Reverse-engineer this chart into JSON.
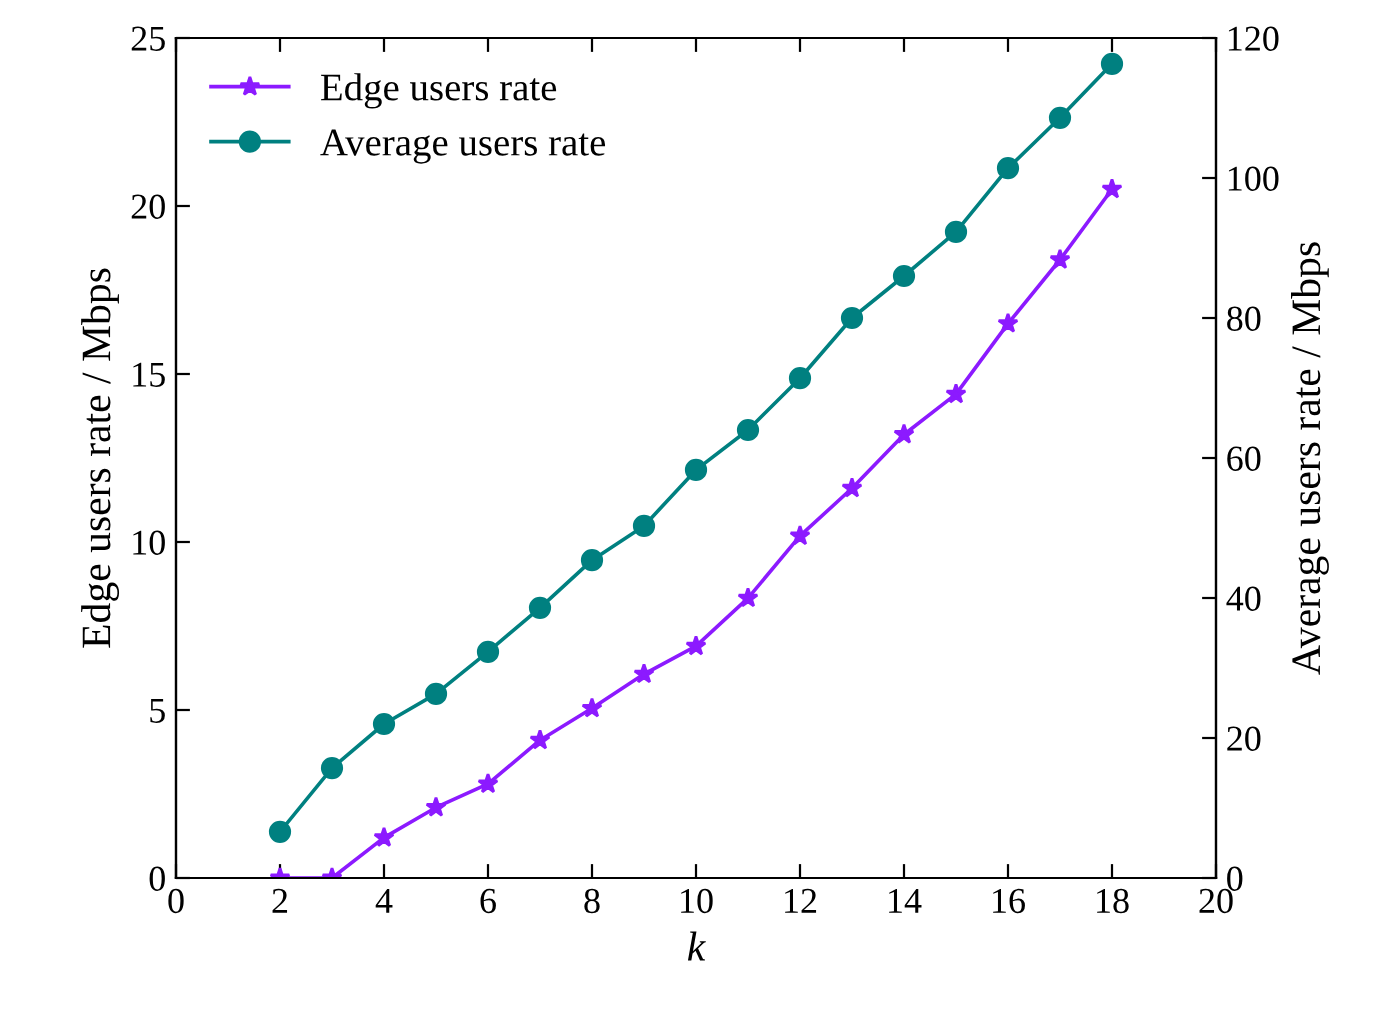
{
  "chart_data": {
    "type": "line",
    "xlabel": "k",
    "ylabel": "Edge users rate / Mbps",
    "y2label": "Average users rate / Mbps",
    "xlim": [
      0,
      20
    ],
    "xticks": [
      0,
      2,
      4,
      6,
      8,
      10,
      12,
      14,
      16,
      18,
      20
    ],
    "ylim": [
      0,
      25
    ],
    "yticks": [
      0,
      5,
      10,
      15,
      20,
      25
    ],
    "y2lim": [
      0,
      120
    ],
    "y2ticks": [
      0,
      20,
      40,
      60,
      80,
      100,
      120
    ],
    "legend": "top left",
    "grid": false,
    "series": [
      {
        "name": "Edge users rate",
        "color": "#8c1aff",
        "marker": "star",
        "x": [
          2,
          3,
          4,
          5,
          6,
          7,
          8,
          9,
          10,
          11,
          12,
          13,
          14,
          15,
          16,
          17,
          18
        ],
        "values": [
          0,
          0,
          1.2,
          2.1,
          2.8,
          4.1,
          5.05,
          6.07,
          6.9,
          8.33,
          10.18,
          11.6,
          13.2,
          14.4,
          16.5,
          18.4,
          20.5
        ]
      },
      {
        "name": "Average users rate",
        "color": "#008080",
        "marker": "circle",
        "axis": "y2",
        "x": [
          2,
          3,
          4,
          5,
          6,
          7,
          8,
          9,
          10,
          11,
          12,
          13,
          14,
          15,
          16,
          17,
          18
        ],
        "values": [
          6.6,
          15.7,
          22,
          26.3,
          32.3,
          38.6,
          45.4,
          50.3,
          58.3,
          64,
          71.4,
          80,
          86,
          92.3,
          101.4,
          108.6,
          116.3
        ]
      }
    ]
  }
}
